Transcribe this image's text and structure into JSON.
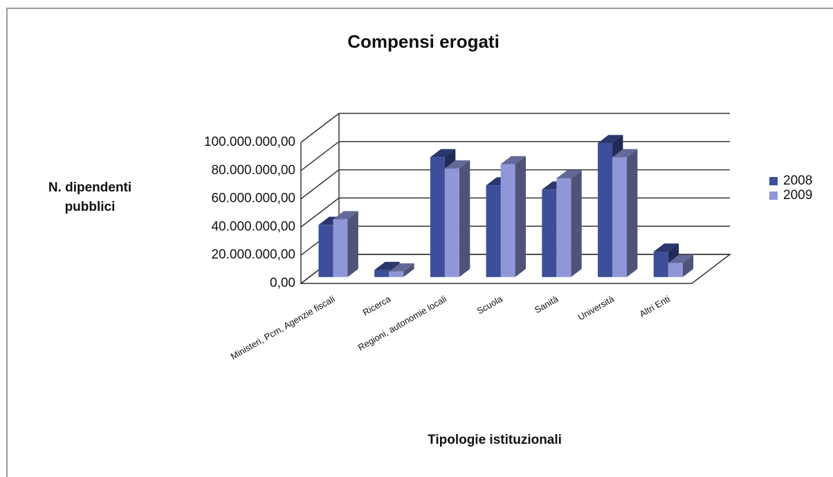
{
  "chart_data": {
    "type": "bar3d",
    "title": "Compensi erogati",
    "x_label": "Tipologie istituzionali",
    "y_label": "N. dipendenti pubblici",
    "categories": [
      "Ministeri, Pcm, Agenzie fiscali",
      "Ricerca",
      "Regioni, autonomie locali",
      "Scuola",
      "Sanità",
      "Università",
      "Altri Enti"
    ],
    "series": [
      {
        "name": "2008",
        "color": "#3d4f9a",
        "values": [
          37000000,
          5000000,
          85000000,
          65000000,
          62000000,
          95000000,
          18000000
        ]
      },
      {
        "name": "2009",
        "color": "#8f97d8",
        "values": [
          41000000,
          4000000,
          77000000,
          80000000,
          70000000,
          85000000,
          10000000
        ]
      }
    ],
    "ylim": [
      0,
      100000000
    ],
    "yticks": [
      {
        "value": 0,
        "label": "0,00"
      },
      {
        "value": 20000000,
        "label": "20.000.000,00"
      },
      {
        "value": 40000000,
        "label": "40.000.000,00"
      },
      {
        "value": 60000000,
        "label": "60.000.000,00"
      },
      {
        "value": 80000000,
        "label": "80.000.000,00"
      },
      {
        "value": 100000000,
        "label": "100.000.000,00"
      }
    ],
    "grid": true,
    "legend": "right"
  }
}
